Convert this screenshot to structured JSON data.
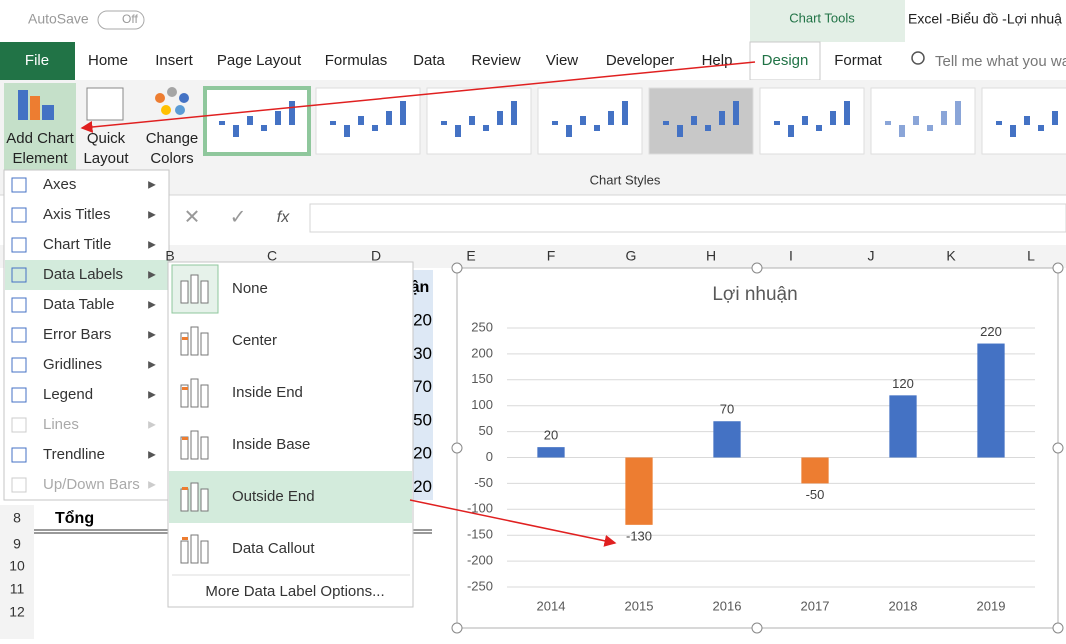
{
  "quick_access": {
    "autosave": "AutoSave",
    "toggle": "Off"
  },
  "window_title": "Excel -Biểu đồ -Lợi nhuậ",
  "context_tab": "Chart Tools",
  "tabs": [
    "File",
    "Home",
    "Insert",
    "Page Layout",
    "Formulas",
    "Data",
    "Review",
    "View",
    "Developer",
    "Help",
    "Design",
    "Format"
  ],
  "tell_me": "Tell me what you wa",
  "ribbon": {
    "add_chart_element": [
      "Add Chart",
      "Element"
    ],
    "quick_layout": [
      "Quick",
      "Layout"
    ],
    "change_colors": [
      "Change",
      "Colors"
    ],
    "group_label": "Chart Styles"
  },
  "formula_bar": {
    "function_label": "fx"
  },
  "column_headers": [
    "B",
    "C",
    "D",
    "E",
    "F",
    "G",
    "H",
    "I",
    "J",
    "K",
    "L"
  ],
  "row_headers": [
    "8",
    "9",
    "10",
    "11",
    "12"
  ],
  "cells": {
    "header_fragment": "ận",
    "value_fragments": [
      "20",
      "30",
      "70",
      "50",
      "20",
      "20"
    ],
    "total_label": "Tổng"
  },
  "menu": {
    "items": [
      "Axes",
      "Axis Titles",
      "Chart Title",
      "Data Labels",
      "Data Table",
      "Error Bars",
      "Gridlines",
      "Legend",
      "Lines",
      "Trendline",
      "Up/Down Bars"
    ]
  },
  "submenu": {
    "items": [
      "None",
      "Center",
      "Inside End",
      "Inside Base",
      "Outside End",
      "Data Callout"
    ],
    "more": "More Data Label Options..."
  },
  "chart_data": {
    "type": "bar",
    "title": "Lợi nhuận",
    "categories": [
      "2014",
      "2015",
      "2016",
      "2017",
      "2018",
      "2019"
    ],
    "values": [
      20,
      -130,
      70,
      -50,
      120,
      220
    ],
    "colors": [
      "#4472c4",
      "#ed7d31",
      "#4472c4",
      "#ed7d31",
      "#4472c4",
      "#4472c4"
    ],
    "ylim": [
      -250,
      250
    ],
    "yticks": [
      -250,
      -200,
      -150,
      -100,
      -50,
      0,
      50,
      100,
      150,
      200,
      250
    ],
    "grid": true,
    "data_labels": "outside_end"
  }
}
